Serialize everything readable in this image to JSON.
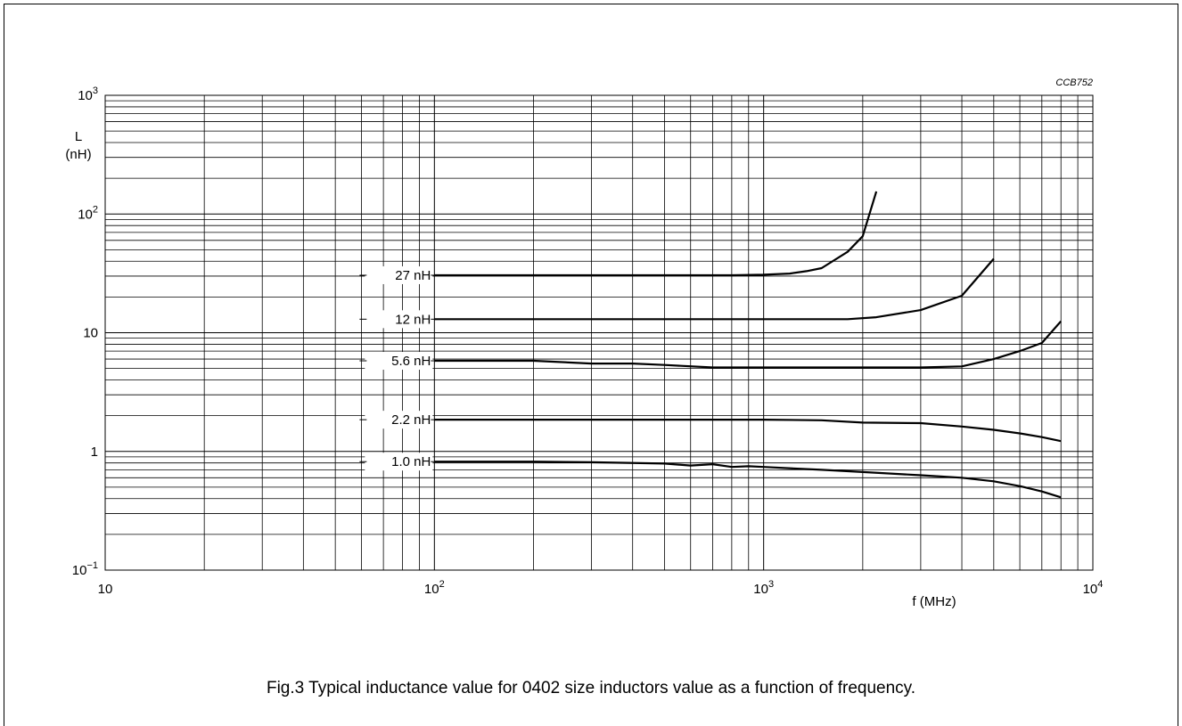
{
  "figure_code": "CCB752",
  "caption": "Fig.3  Typical inductance value for 0402 size inductors value as a function of frequency.",
  "chart_data": {
    "type": "line",
    "x_scale": "log",
    "y_scale": "log",
    "xlim": [
      10,
      10000
    ],
    "ylim": [
      0.1,
      1000
    ],
    "xlabel": "f  (MHz)",
    "ylabel_line1": "L",
    "ylabel_line2": "(nH)",
    "x_ticks": [
      {
        "value": 10,
        "base": "10",
        "exp": ""
      },
      {
        "value": 100,
        "base": "10",
        "exp": "2"
      },
      {
        "value": 1000,
        "base": "10",
        "exp": "3"
      },
      {
        "value": 10000,
        "base": "10",
        "exp": "4"
      }
    ],
    "y_ticks": [
      {
        "value": 0.1,
        "base": "10",
        "exp": "−1"
      },
      {
        "value": 1,
        "base": "1",
        "exp": ""
      },
      {
        "value": 10,
        "base": "10",
        "exp": ""
      },
      {
        "value": 100,
        "base": "10",
        "exp": "2"
      },
      {
        "value": 1000,
        "base": "10",
        "exp": "3"
      }
    ],
    "grid": true,
    "series": [
      {
        "name": "27 nH",
        "label_value": 30.5,
        "x": [
          100,
          200,
          300,
          500,
          700,
          800,
          1000,
          1200,
          1350,
          1500,
          1800,
          2000,
          2200
        ],
        "y": [
          30.5,
          30.5,
          30.5,
          30.5,
          30.5,
          30.5,
          30.8,
          31.5,
          33,
          35,
          48,
          65,
          155
        ]
      },
      {
        "name": "12 nH",
        "label_value": 13,
        "x": [
          100,
          200,
          500,
          1000,
          1500,
          1800,
          2200,
          3000,
          4000,
          5000
        ],
        "y": [
          13,
          13,
          13,
          13,
          13,
          13,
          13.5,
          15.5,
          20.5,
          42
        ]
      },
      {
        "name": "5.6 nH",
        "label_value": 5.8,
        "x": [
          100,
          200,
          300,
          400,
          500,
          700,
          1000,
          1500,
          2000,
          3000,
          4000,
          5000,
          6000,
          7000,
          8000
        ],
        "y": [
          5.8,
          5.8,
          5.5,
          5.5,
          5.35,
          5.1,
          5.1,
          5.1,
          5.1,
          5.1,
          5.2,
          6.0,
          7.0,
          8.2,
          12.5
        ]
      },
      {
        "name": "2.2 nH",
        "label_value": 1.85,
        "x": [
          100,
          200,
          500,
          1000,
          1500,
          2000,
          3000,
          4000,
          5000,
          6000,
          7000,
          8000
        ],
        "y": [
          1.85,
          1.85,
          1.85,
          1.85,
          1.83,
          1.75,
          1.73,
          1.62,
          1.52,
          1.42,
          1.32,
          1.22
        ]
      },
      {
        "name": "1.0 nH",
        "label_value": 0.82,
        "x": [
          100,
          200,
          300,
          500,
          600,
          700,
          800,
          900,
          1000,
          1500,
          2000,
          3000,
          4000,
          5000,
          6000,
          7000,
          8000
        ],
        "y": [
          0.82,
          0.82,
          0.81,
          0.79,
          0.76,
          0.78,
          0.74,
          0.75,
          0.74,
          0.7,
          0.67,
          0.63,
          0.6,
          0.56,
          0.51,
          0.46,
          0.41
        ]
      }
    ]
  }
}
